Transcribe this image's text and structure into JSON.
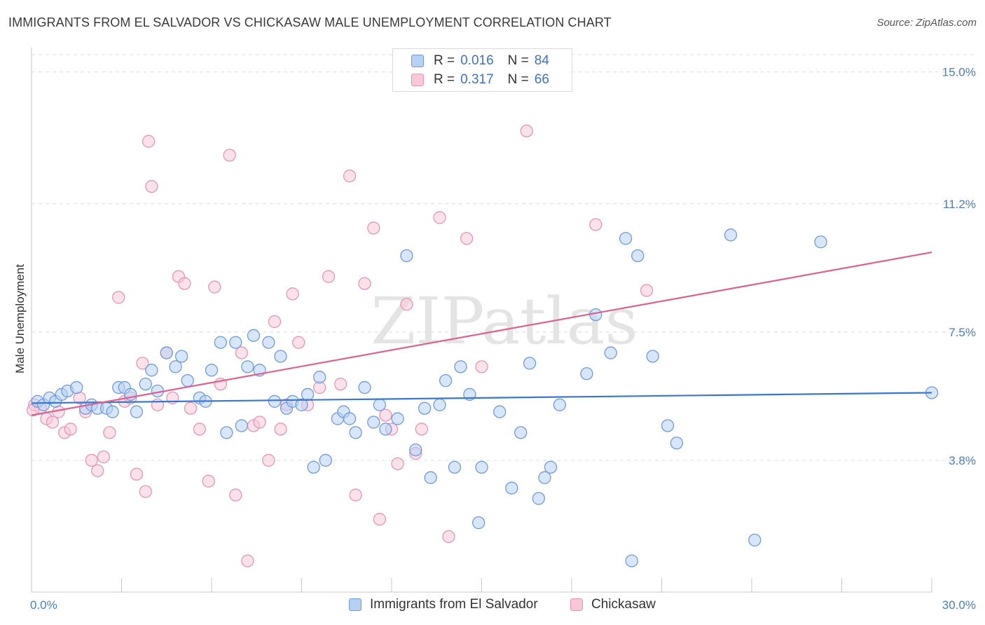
{
  "title": "IMMIGRANTS FROM EL SALVADOR VS CHICKASAW MALE UNEMPLOYMENT CORRELATION CHART",
  "source": "Source: ZipAtlas.com",
  "watermark": "ZIPatlas",
  "legend_top": [
    {
      "r_label": "R =",
      "r_value": "0.016",
      "n_label": "N =",
      "n_value": "84"
    },
    {
      "r_label": "R =",
      "r_value": "0.317",
      "n_label": "N =",
      "n_value": "66"
    }
  ],
  "legend_bottom": [
    "Immigrants from El Salvador",
    "Chickasaw"
  ],
  "colors": {
    "blue_fill": "#b7d1f5",
    "blue_stroke": "#6f9be0",
    "blue_line": "#3a78cf",
    "pink_fill": "#f8c8d8",
    "pink_stroke": "#e896b2",
    "pink_line": "#e0608e",
    "tick_text": "#4a7ec9",
    "grid": "#dcdcdc"
  },
  "chart_data": {
    "type": "scatter",
    "xlabel": "",
    "ylabel": "Male Unemployment",
    "xlim": [
      0,
      30
    ],
    "ylim": [
      0,
      15.5
    ],
    "x_tick_labels": [
      "0.0%",
      "30.0%"
    ],
    "y_ticks": [
      3.8,
      7.5,
      11.2,
      15.0
    ],
    "y_tick_labels": [
      "3.8%",
      "7.5%",
      "11.2%",
      "15.0%"
    ],
    "grid": "horizontal dashed",
    "legend_position": "top-center",
    "series": [
      {
        "name": "Immigrants from El Salvador",
        "trend": [
          [
            0,
            5.45
          ],
          [
            30,
            5.75
          ]
        ],
        "points": [
          [
            0.2,
            5.5
          ],
          [
            0.4,
            5.4
          ],
          [
            0.6,
            5.6
          ],
          [
            0.8,
            5.5
          ],
          [
            1.0,
            5.7
          ],
          [
            1.2,
            5.8
          ],
          [
            1.5,
            5.9
          ],
          [
            1.8,
            5.3
          ],
          [
            2.0,
            5.4
          ],
          [
            2.2,
            5.3
          ],
          [
            2.5,
            5.3
          ],
          [
            2.7,
            5.2
          ],
          [
            2.9,
            5.9
          ],
          [
            3.1,
            5.9
          ],
          [
            3.3,
            5.7
          ],
          [
            3.5,
            5.2
          ],
          [
            3.8,
            6.0
          ],
          [
            4.0,
            6.4
          ],
          [
            4.2,
            5.8
          ],
          [
            4.5,
            6.9
          ],
          [
            4.8,
            6.5
          ],
          [
            5.0,
            6.8
          ],
          [
            5.2,
            6.1
          ],
          [
            5.6,
            5.6
          ],
          [
            5.8,
            5.5
          ],
          [
            6.0,
            6.4
          ],
          [
            6.3,
            7.2
          ],
          [
            6.5,
            4.6
          ],
          [
            6.8,
            7.2
          ],
          [
            7.0,
            4.8
          ],
          [
            7.2,
            6.5
          ],
          [
            7.4,
            7.4
          ],
          [
            7.6,
            6.4
          ],
          [
            7.9,
            7.2
          ],
          [
            8.1,
            5.5
          ],
          [
            8.3,
            6.8
          ],
          [
            8.5,
            5.3
          ],
          [
            8.7,
            5.5
          ],
          [
            9.0,
            5.4
          ],
          [
            9.2,
            5.7
          ],
          [
            9.4,
            3.6
          ],
          [
            9.6,
            6.2
          ],
          [
            9.8,
            3.8
          ],
          [
            10.2,
            5.0
          ],
          [
            10.4,
            5.2
          ],
          [
            10.6,
            5.0
          ],
          [
            10.8,
            4.6
          ],
          [
            11.1,
            5.9
          ],
          [
            11.4,
            4.9
          ],
          [
            11.6,
            5.4
          ],
          [
            11.8,
            4.7
          ],
          [
            12.2,
            5.0
          ],
          [
            12.5,
            9.7
          ],
          [
            12.8,
            4.1
          ],
          [
            13.1,
            5.3
          ],
          [
            13.3,
            3.3
          ],
          [
            13.6,
            5.4
          ],
          [
            13.8,
            6.1
          ],
          [
            14.1,
            3.6
          ],
          [
            14.3,
            6.5
          ],
          [
            14.6,
            5.7
          ],
          [
            14.9,
            2.0
          ],
          [
            15.0,
            3.6
          ],
          [
            15.6,
            5.2
          ],
          [
            16.0,
            3.0
          ],
          [
            16.3,
            4.6
          ],
          [
            16.6,
            6.6
          ],
          [
            16.9,
            2.7
          ],
          [
            17.1,
            3.3
          ],
          [
            17.3,
            3.6
          ],
          [
            17.6,
            5.4
          ],
          [
            18.5,
            6.3
          ],
          [
            18.8,
            8.0
          ],
          [
            19.3,
            6.9
          ],
          [
            19.8,
            10.2
          ],
          [
            20.2,
            9.7
          ],
          [
            20.7,
            6.8
          ],
          [
            21.2,
            4.8
          ],
          [
            21.5,
            4.3
          ],
          [
            23.3,
            10.3
          ],
          [
            24.1,
            1.5
          ],
          [
            26.3,
            10.1
          ],
          [
            20.0,
            0.9
          ],
          [
            30.0,
            5.75
          ]
        ]
      },
      {
        "name": "Chickasaw",
        "trend": [
          [
            0,
            5.1
          ],
          [
            30,
            9.8
          ]
        ],
        "points": [
          [
            0.1,
            5.4
          ],
          [
            0.3,
            5.3
          ],
          [
            0.5,
            5.0
          ],
          [
            0.7,
            4.9
          ],
          [
            0.9,
            5.2
          ],
          [
            1.1,
            4.6
          ],
          [
            1.3,
            4.7
          ],
          [
            1.6,
            5.6
          ],
          [
            1.8,
            5.2
          ],
          [
            2.0,
            3.8
          ],
          [
            2.2,
            3.5
          ],
          [
            2.4,
            3.9
          ],
          [
            2.6,
            4.6
          ],
          [
            2.9,
            8.5
          ],
          [
            3.1,
            5.5
          ],
          [
            3.3,
            5.6
          ],
          [
            3.5,
            3.4
          ],
          [
            3.7,
            6.6
          ],
          [
            3.8,
            2.9
          ],
          [
            3.9,
            13.0
          ],
          [
            4.0,
            11.7
          ],
          [
            4.2,
            5.4
          ],
          [
            4.5,
            6.9
          ],
          [
            4.7,
            5.6
          ],
          [
            4.9,
            9.1
          ],
          [
            5.1,
            8.9
          ],
          [
            5.3,
            5.3
          ],
          [
            5.6,
            4.7
          ],
          [
            5.9,
            3.2
          ],
          [
            6.1,
            8.8
          ],
          [
            6.3,
            6.0
          ],
          [
            6.6,
            12.6
          ],
          [
            6.8,
            2.8
          ],
          [
            7.0,
            6.9
          ],
          [
            7.2,
            0.9
          ],
          [
            7.4,
            4.8
          ],
          [
            7.6,
            4.9
          ],
          [
            7.9,
            3.8
          ],
          [
            8.1,
            7.8
          ],
          [
            8.3,
            4.7
          ],
          [
            8.5,
            5.4
          ],
          [
            8.7,
            8.6
          ],
          [
            8.9,
            7.2
          ],
          [
            9.2,
            5.4
          ],
          [
            9.6,
            5.9
          ],
          [
            9.9,
            9.1
          ],
          [
            10.3,
            6.0
          ],
          [
            10.6,
            12.0
          ],
          [
            10.8,
            2.8
          ],
          [
            11.1,
            8.9
          ],
          [
            11.4,
            10.5
          ],
          [
            11.6,
            2.1
          ],
          [
            11.8,
            5.1
          ],
          [
            12.0,
            4.7
          ],
          [
            12.2,
            3.7
          ],
          [
            12.5,
            8.3
          ],
          [
            12.8,
            4.0
          ],
          [
            13.0,
            4.7
          ],
          [
            13.6,
            10.8
          ],
          [
            13.9,
            1.6
          ],
          [
            14.5,
            10.2
          ],
          [
            15.0,
            6.5
          ],
          [
            16.5,
            13.3
          ],
          [
            18.8,
            10.6
          ],
          [
            20.5,
            8.7
          ],
          [
            0.05,
            5.25
          ]
        ]
      }
    ]
  }
}
